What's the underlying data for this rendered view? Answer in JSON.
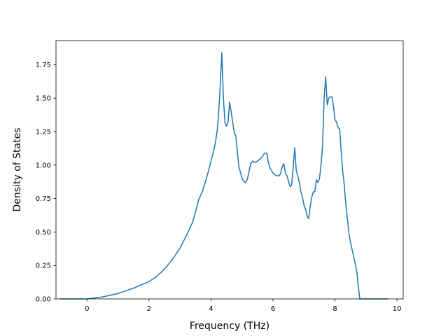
{
  "chart_data": {
    "type": "line",
    "title": "",
    "xlabel": "Frequency (THz)",
    "ylabel": "Density of States",
    "xlim": [
      -1.0,
      10.2
    ],
    "ylim": [
      0.0,
      1.93
    ],
    "xticks": [
      0,
      2,
      4,
      6,
      8,
      10
    ],
    "xtick_labels": [
      "0",
      "2",
      "4",
      "6",
      "8",
      "10"
    ],
    "yticks": [
      0.0,
      0.25,
      0.5,
      0.75,
      1.0,
      1.25,
      1.5,
      1.75
    ],
    "ytick_labels": [
      "0.00",
      "0.25",
      "0.50",
      "0.75",
      "1.00",
      "1.25",
      "1.50",
      "1.75"
    ],
    "grid": false,
    "legend": "none",
    "series": [
      {
        "color": "#1f77b4",
        "x": [
          -0.9,
          -0.5,
          0.0,
          0.2,
          0.5,
          1.0,
          1.5,
          2.0,
          2.2,
          2.4,
          2.6,
          2.8,
          3.0,
          3.2,
          3.4,
          3.5,
          3.6,
          3.7,
          3.8,
          3.85,
          3.9,
          4.0,
          4.1,
          4.15,
          4.2,
          4.25,
          4.3,
          4.35,
          4.4,
          4.45,
          4.5,
          4.55,
          4.6,
          4.65,
          4.7,
          4.75,
          4.8,
          4.85,
          4.9,
          5.0,
          5.05,
          5.1,
          5.15,
          5.2,
          5.25,
          5.3,
          5.35,
          5.4,
          5.45,
          5.5,
          5.55,
          5.6,
          5.65,
          5.7,
          5.75,
          5.8,
          5.85,
          5.9,
          5.95,
          6.0,
          6.05,
          6.1,
          6.15,
          6.2,
          6.25,
          6.3,
          6.35,
          6.4,
          6.45,
          6.5,
          6.55,
          6.6,
          6.65,
          6.7,
          6.75,
          6.8,
          6.85,
          6.9,
          6.95,
          7.0,
          7.05,
          7.1,
          7.15,
          7.2,
          7.25,
          7.3,
          7.35,
          7.4,
          7.45,
          7.5,
          7.55,
          7.6,
          7.65,
          7.7,
          7.75,
          7.8,
          7.85,
          7.9,
          7.95,
          8.0,
          8.05,
          8.1,
          8.15,
          8.2,
          8.25,
          8.3,
          8.35,
          8.4,
          8.45,
          8.5,
          8.6,
          8.7,
          8.75,
          8.8,
          8.85,
          8.9,
          9.3,
          9.7
        ],
        "y": [
          0.0,
          0.0,
          0.0,
          0.005,
          0.015,
          0.04,
          0.08,
          0.13,
          0.16,
          0.2,
          0.25,
          0.31,
          0.38,
          0.47,
          0.57,
          0.65,
          0.74,
          0.79,
          0.86,
          0.9,
          0.94,
          1.03,
          1.12,
          1.18,
          1.26,
          1.4,
          1.6,
          1.84,
          1.5,
          1.32,
          1.29,
          1.32,
          1.47,
          1.4,
          1.32,
          1.24,
          1.22,
          1.1,
          0.99,
          0.9,
          0.88,
          0.87,
          0.88,
          0.92,
          0.98,
          1.02,
          1.03,
          1.02,
          1.02,
          1.03,
          1.04,
          1.05,
          1.06,
          1.08,
          1.09,
          1.09,
          1.02,
          0.98,
          0.96,
          0.94,
          0.93,
          0.92,
          0.92,
          0.92,
          0.94,
          0.99,
          1.01,
          0.94,
          0.92,
          0.88,
          0.84,
          0.85,
          0.98,
          1.13,
          0.96,
          0.92,
          0.87,
          0.8,
          0.76,
          0.7,
          0.67,
          0.62,
          0.6,
          0.69,
          0.76,
          0.8,
          0.8,
          0.89,
          0.87,
          0.9,
          1.0,
          1.15,
          1.5,
          1.66,
          1.45,
          1.5,
          1.51,
          1.51,
          1.44,
          1.34,
          1.32,
          1.28,
          1.27,
          1.1,
          0.95,
          0.85,
          0.7,
          0.6,
          0.49,
          0.42,
          0.32,
          0.21,
          0.1,
          0.0,
          0.0,
          0.0,
          0.0,
          0.0
        ]
      }
    ]
  }
}
